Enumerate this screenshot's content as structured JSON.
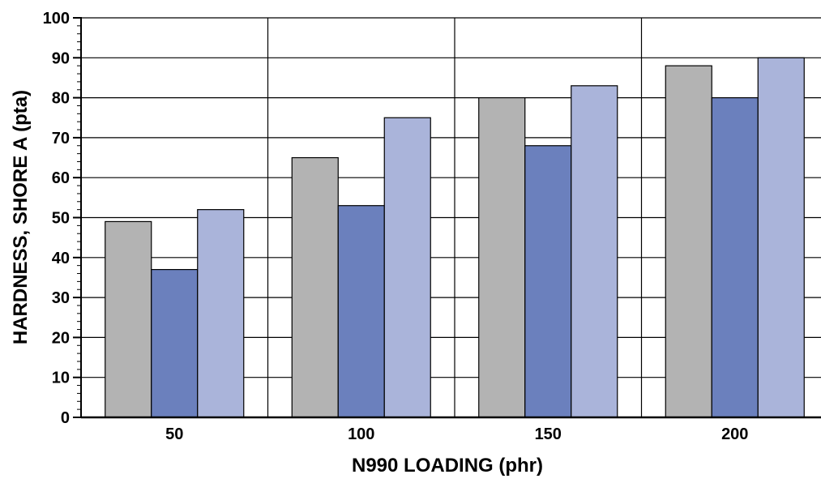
{
  "chart_data": {
    "type": "bar",
    "title": "",
    "xlabel": "N990 LOADING (phr)",
    "ylabel": "HARDNESS, SHORE A (pta)",
    "categories": [
      "50",
      "100",
      "150",
      "200"
    ],
    "ylim": [
      0,
      100
    ],
    "yticks": [
      "0",
      "10",
      "20",
      "30",
      "40",
      "50",
      "60",
      "70",
      "80",
      "90",
      "100"
    ],
    "grid": true,
    "legend": "none",
    "series": [
      {
        "color": "#b3b3b3",
        "values": [
          49,
          65,
          80,
          88
        ]
      },
      {
        "color": "#6b80bd",
        "values": [
          37,
          53,
          68,
          80
        ]
      },
      {
        "color": "#aab4da",
        "values": [
          52,
          75,
          83,
          90
        ]
      }
    ]
  }
}
